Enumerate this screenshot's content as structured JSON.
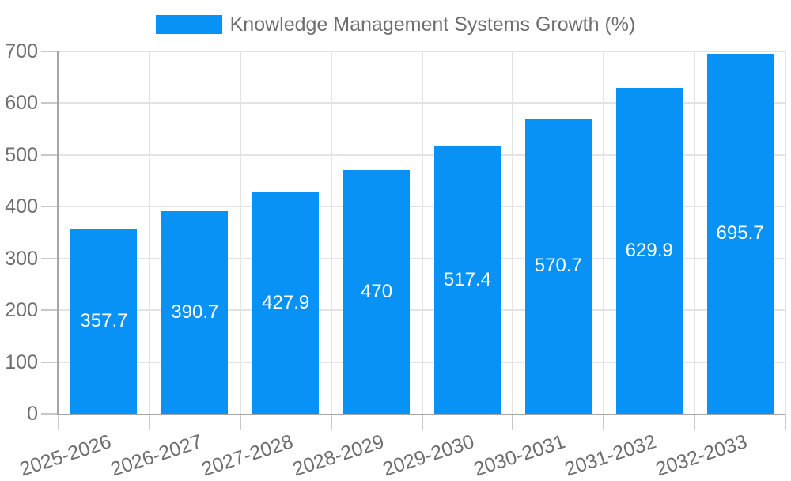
{
  "legend": {
    "label": "Knowledge Management Systems Growth (%)"
  },
  "chart_data": {
    "type": "bar",
    "title": "Knowledge Management Systems Growth (%)",
    "legend_position": "top",
    "categories": [
      "2025-2026",
      "2026-2027",
      "2027-2028",
      "2028-2029",
      "2029-2030",
      "2030-2031",
      "2031-2032",
      "2032-2033"
    ],
    "series": [
      {
        "name": "Knowledge Management Systems Growth (%)",
        "values": [
          357.7,
          390.7,
          427.9,
          470,
          517.4,
          570.7,
          629.9,
          695.7
        ],
        "value_labels": [
          "357.7",
          "390.7",
          "427.9",
          "470",
          "517.4",
          "570.7",
          "629.9",
          "695.7"
        ],
        "color": "#0992f5"
      }
    ],
    "xlabel": "",
    "ylabel": "",
    "ylim": [
      0,
      700
    ],
    "yticks": [
      0,
      100,
      200,
      300,
      400,
      500,
      600,
      700
    ],
    "grid": true,
    "x_label_rotation_deg": -18,
    "colors": {
      "bar": "#0992f5",
      "value_label_text": "#ffffff",
      "axis_text": "#6e6e6e",
      "grid_line": "#e3e3e3",
      "axis_line": "#a6a6a6",
      "tick_mark": "#c9c9c9",
      "background": "#ffffff"
    }
  }
}
